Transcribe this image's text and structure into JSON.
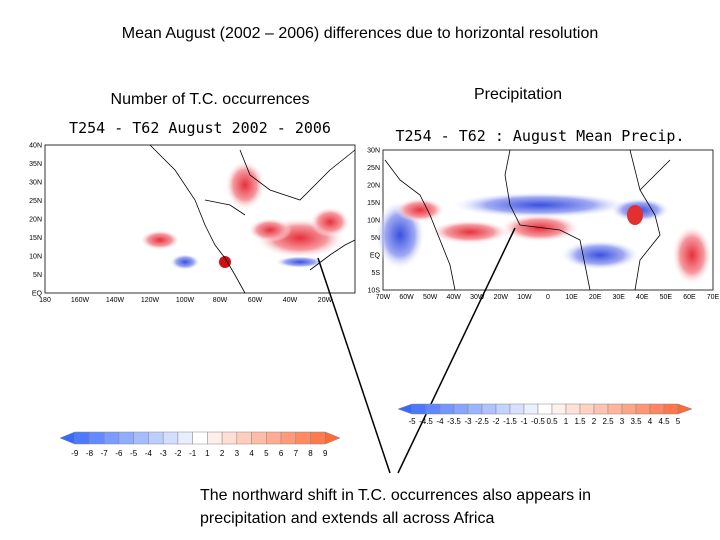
{
  "title": "Mean August (2002 – 2006) differences due to horizontal resolution",
  "left_panel": {
    "label": "Number of T.C. occurrences",
    "map_title": "T254 - T62 August 2002 - 2006",
    "y_ticks": [
      "40N",
      "35N",
      "30N",
      "25N",
      "20N",
      "15N",
      "10N",
      "5N",
      "EQ"
    ],
    "x_ticks": [
      "180",
      "160W",
      "140W",
      "120W",
      "100W",
      "80W",
      "60W",
      "40W",
      "20W"
    ],
    "colorbar_labels": [
      "-9",
      "-8",
      "-7",
      "-6",
      "-5",
      "-4",
      "-3",
      "-2",
      "-1",
      "1",
      "2",
      "3",
      "4",
      "5",
      "6",
      "7",
      "8",
      "9"
    ]
  },
  "right_panel": {
    "label": "Precipitation",
    "map_title": "T254 - T62 : August Mean Precip.",
    "y_ticks": [
      "30N",
      "25N",
      "20N",
      "15N",
      "10N",
      "5N",
      "EQ",
      "5S",
      "10S"
    ],
    "x_ticks": [
      "70W",
      "60W",
      "50W",
      "40W",
      "30W",
      "20W",
      "10W",
      "0",
      "10E",
      "20E",
      "30E",
      "40E",
      "50E",
      "60E",
      "70E"
    ],
    "colorbar_labels": [
      "-5",
      "-4.5",
      "-4",
      "-3.5",
      "-3",
      "-2.5",
      "-2",
      "-1.5",
      "-1",
      "-0.5",
      "0.5",
      "1",
      "1.5",
      "2",
      "2.5",
      "3",
      "3.5",
      "4",
      "4.5",
      "5"
    ]
  },
  "caption": [
    "The northward shift in T.C. occurrences also appears in",
    "precipitation and extends all across Africa"
  ]
}
